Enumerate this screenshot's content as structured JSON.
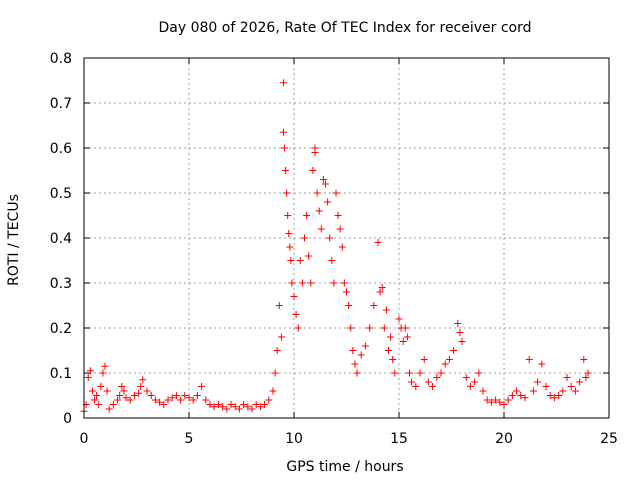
{
  "chart_data": {
    "type": "scatter",
    "title": "Day 080 of 2026, Rate Of TEC Index for receiver cord",
    "xlabel": "GPS time / hours",
    "ylabel": "ROTI / TECUs",
    "xlim": [
      0,
      25
    ],
    "ylim": [
      0,
      0.8
    ],
    "xticks": [
      "0",
      "5",
      "10",
      "15",
      "20",
      "25"
    ],
    "yticks": [
      "0",
      "0.1",
      "0.2",
      "0.3",
      "0.4",
      "0.5",
      "0.6",
      "0.7",
      "0.8"
    ],
    "grid": true,
    "legend": "none",
    "marker": "+",
    "color": "#ff0000",
    "series": [
      {
        "name": "",
        "points": [
          [
            0.0,
            0.015
          ],
          [
            0.1,
            0.03
          ],
          [
            0.2,
            0.09
          ],
          [
            0.3,
            0.105
          ],
          [
            0.4,
            0.06
          ],
          [
            0.5,
            0.04
          ],
          [
            0.6,
            0.05
          ],
          [
            0.7,
            0.03
          ],
          [
            0.8,
            0.07
          ],
          [
            0.9,
            0.1
          ],
          [
            1.0,
            0.115
          ],
          [
            1.1,
            0.06
          ],
          [
            1.2,
            0.02
          ],
          [
            1.4,
            0.03
          ],
          [
            1.6,
            0.04
          ],
          [
            1.7,
            0.05
          ],
          [
            1.8,
            0.07
          ],
          [
            1.9,
            0.06
          ],
          [
            2.0,
            0.045
          ],
          [
            2.2,
            0.04
          ],
          [
            2.4,
            0.05
          ],
          [
            2.6,
            0.055
          ],
          [
            2.7,
            0.07
          ],
          [
            2.8,
            0.085
          ],
          [
            3.0,
            0.06
          ],
          [
            3.2,
            0.05
          ],
          [
            3.4,
            0.04
          ],
          [
            3.6,
            0.035
          ],
          [
            3.8,
            0.03
          ],
          [
            4.0,
            0.04
          ],
          [
            4.2,
            0.045
          ],
          [
            4.4,
            0.05
          ],
          [
            4.6,
            0.04
          ],
          [
            4.8,
            0.05
          ],
          [
            5.0,
            0.045
          ],
          [
            5.2,
            0.04
          ],
          [
            5.4,
            0.05
          ],
          [
            5.6,
            0.07
          ],
          [
            5.8,
            0.04
          ],
          [
            6.0,
            0.03
          ],
          [
            6.2,
            0.025
          ],
          [
            6.4,
            0.03
          ],
          [
            6.6,
            0.025
          ],
          [
            6.8,
            0.02
          ],
          [
            7.0,
            0.03
          ],
          [
            7.2,
            0.025
          ],
          [
            7.4,
            0.02
          ],
          [
            7.6,
            0.03
          ],
          [
            7.8,
            0.025
          ],
          [
            8.0,
            0.02
          ],
          [
            8.2,
            0.03
          ],
          [
            8.4,
            0.025
          ],
          [
            8.6,
            0.03
          ],
          [
            8.8,
            0.04
          ],
          [
            9.0,
            0.06
          ],
          [
            9.1,
            0.1
          ],
          [
            9.2,
            0.15
          ],
          [
            9.3,
            0.25
          ],
          [
            9.4,
            0.18
          ],
          [
            9.5,
            0.745
          ],
          [
            9.5,
            0.635
          ],
          [
            9.55,
            0.6
          ],
          [
            9.6,
            0.55
          ],
          [
            9.65,
            0.5
          ],
          [
            9.7,
            0.45
          ],
          [
            9.75,
            0.41
          ],
          [
            9.8,
            0.38
          ],
          [
            9.85,
            0.35
          ],
          [
            9.9,
            0.3
          ],
          [
            10.0,
            0.27
          ],
          [
            10.1,
            0.23
          ],
          [
            10.2,
            0.2
          ],
          [
            10.3,
            0.35
          ],
          [
            10.4,
            0.3
          ],
          [
            10.5,
            0.4
          ],
          [
            10.6,
            0.45
          ],
          [
            10.7,
            0.36
          ],
          [
            10.8,
            0.3
          ],
          [
            10.9,
            0.55
          ],
          [
            11.0,
            0.6
          ],
          [
            11.0,
            0.59
          ],
          [
            11.1,
            0.5
          ],
          [
            11.2,
            0.46
          ],
          [
            11.3,
            0.42
          ],
          [
            11.4,
            0.53
          ],
          [
            11.5,
            0.52
          ],
          [
            11.6,
            0.48
          ],
          [
            11.7,
            0.4
          ],
          [
            11.8,
            0.35
          ],
          [
            11.9,
            0.3
          ],
          [
            12.0,
            0.5
          ],
          [
            12.1,
            0.45
          ],
          [
            12.2,
            0.42
          ],
          [
            12.3,
            0.38
          ],
          [
            12.4,
            0.3
          ],
          [
            12.5,
            0.28
          ],
          [
            12.6,
            0.25
          ],
          [
            12.7,
            0.2
          ],
          [
            12.8,
            0.15
          ],
          [
            12.9,
            0.12
          ],
          [
            13.0,
            0.1
          ],
          [
            13.2,
            0.14
          ],
          [
            13.4,
            0.16
          ],
          [
            13.6,
            0.2
          ],
          [
            13.8,
            0.25
          ],
          [
            14.0,
            0.39
          ],
          [
            14.1,
            0.28
          ],
          [
            14.2,
            0.29
          ],
          [
            14.3,
            0.2
          ],
          [
            14.4,
            0.24
          ],
          [
            14.5,
            0.15
          ],
          [
            14.6,
            0.18
          ],
          [
            14.7,
            0.13
          ],
          [
            14.8,
            0.1
          ],
          [
            15.0,
            0.22
          ],
          [
            15.1,
            0.2
          ],
          [
            15.2,
            0.17
          ],
          [
            15.3,
            0.2
          ],
          [
            15.4,
            0.18
          ],
          [
            15.5,
            0.1
          ],
          [
            15.6,
            0.08
          ],
          [
            15.8,
            0.07
          ],
          [
            16.0,
            0.1
          ],
          [
            16.2,
            0.13
          ],
          [
            16.4,
            0.08
          ],
          [
            16.6,
            0.07
          ],
          [
            16.8,
            0.09
          ],
          [
            17.0,
            0.1
          ],
          [
            17.2,
            0.12
          ],
          [
            17.4,
            0.13
          ],
          [
            17.6,
            0.15
          ],
          [
            17.8,
            0.21
          ],
          [
            17.9,
            0.19
          ],
          [
            18.0,
            0.17
          ],
          [
            18.2,
            0.09
          ],
          [
            18.4,
            0.07
          ],
          [
            18.6,
            0.08
          ],
          [
            18.8,
            0.1
          ],
          [
            19.0,
            0.06
          ],
          [
            19.2,
            0.04
          ],
          [
            19.4,
            0.035
          ],
          [
            19.6,
            0.04
          ],
          [
            19.8,
            0.035
          ],
          [
            20.0,
            0.03
          ],
          [
            20.2,
            0.04
          ],
          [
            20.4,
            0.05
          ],
          [
            20.6,
            0.06
          ],
          [
            20.8,
            0.05
          ],
          [
            21.0,
            0.045
          ],
          [
            21.2,
            0.13
          ],
          [
            21.4,
            0.06
          ],
          [
            21.6,
            0.08
          ],
          [
            21.8,
            0.12
          ],
          [
            22.0,
            0.07
          ],
          [
            22.2,
            0.05
          ],
          [
            22.4,
            0.045
          ],
          [
            22.6,
            0.05
          ],
          [
            22.8,
            0.06
          ],
          [
            23.0,
            0.09
          ],
          [
            23.2,
            0.07
          ],
          [
            23.4,
            0.06
          ],
          [
            23.6,
            0.08
          ],
          [
            23.8,
            0.13
          ],
          [
            23.9,
            0.09
          ],
          [
            24.0,
            0.1
          ]
        ]
      }
    ]
  }
}
